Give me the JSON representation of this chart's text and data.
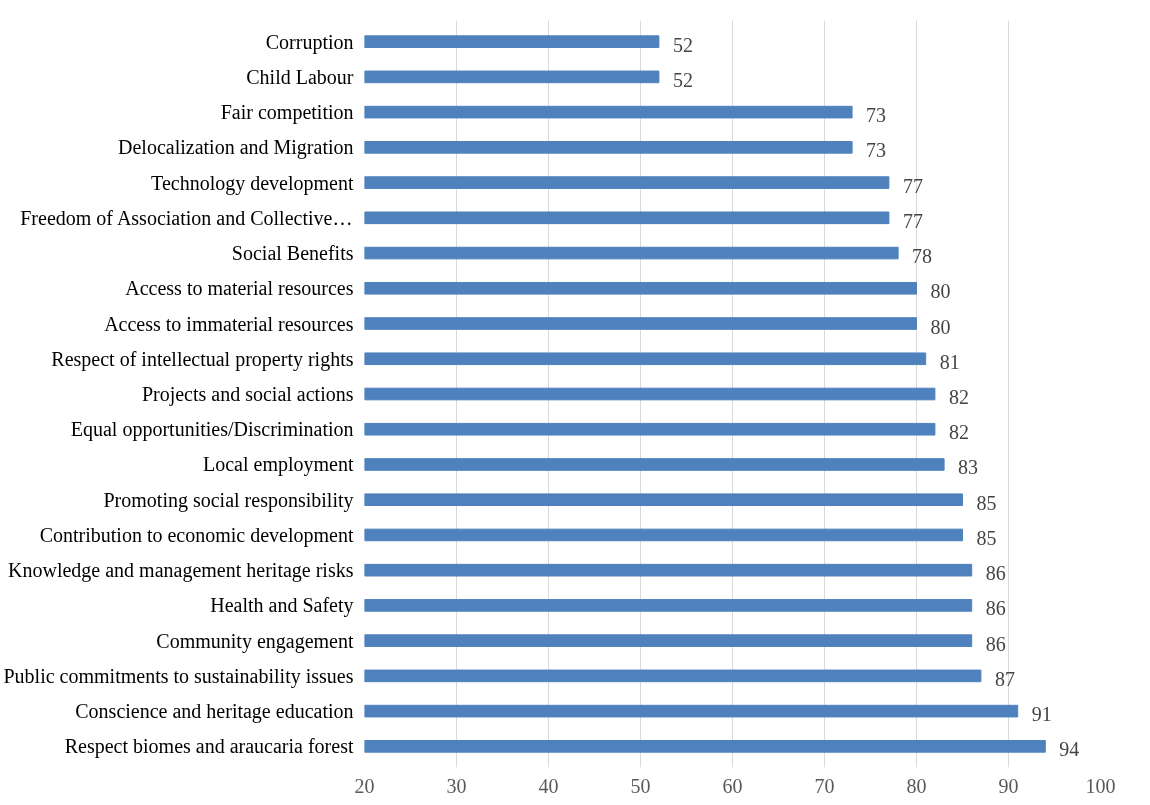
{
  "chart_data": {
    "type": "bar",
    "orientation": "horizontal",
    "categories": [
      "Corruption",
      "Child Labour",
      "Fair competition",
      "Delocalization and Migration",
      "Technology development",
      "Freedom of Association and Collective…",
      "Social Benefits",
      "Access to material resources",
      "Access to immaterial resources",
      "Respect of intellectual property rights",
      "Projects and social actions",
      "Equal opportunities/Discrimination",
      "Local employment",
      "Promoting social responsibility",
      "Contribution to economic development",
      "Knowledge and management heritage risks",
      "Health and Safety",
      "Community engagement",
      "Public commitments to sustainability issues",
      "Conscience and heritage education",
      "Respect biomes and araucaria forest"
    ],
    "values": [
      52,
      52,
      73,
      73,
      77,
      77,
      78,
      80,
      80,
      81,
      82,
      82,
      83,
      85,
      85,
      86,
      86,
      86,
      87,
      91,
      94
    ],
    "color": "#4f81bd",
    "xlim": [
      20,
      100
    ],
    "xticks": [
      20,
      30,
      40,
      50,
      60,
      70,
      80,
      90,
      100
    ],
    "grid": "x",
    "data_labels": true
  }
}
